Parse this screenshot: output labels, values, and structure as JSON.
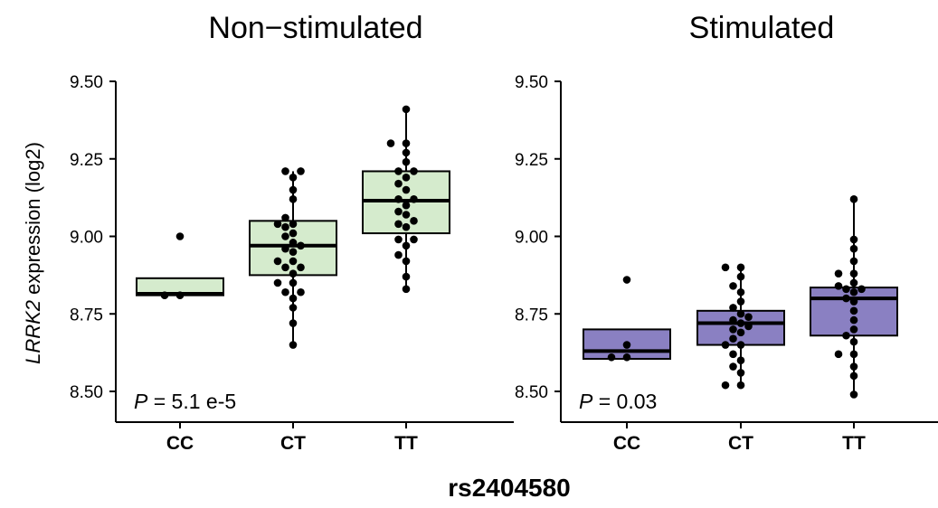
{
  "ylabel_italic": "LRRK2",
  "ylabel_rest": " expression (log2)",
  "xlabel": "rs2404580",
  "chart_data": [
    {
      "type": "box",
      "title": "Non−stimulated",
      "categories": [
        "CC",
        "CT",
        "TT"
      ],
      "ylim": [
        8.45,
        9.55
      ],
      "yticks": [
        "8.50",
        "8.75",
        "9.00",
        "9.25",
        "9.50"
      ],
      "fill": "#d5ebcd",
      "p_label": "P",
      "p_value": " = 5.1 e-5",
      "boxes": [
        {
          "q1": 8.81,
          "median": 8.815,
          "q3": 8.865,
          "whisker_low": 8.81,
          "whisker_high": 8.865
        },
        {
          "q1": 8.875,
          "median": 8.97,
          "q3": 9.05,
          "whisker_low": 8.65,
          "whisker_high": 9.21
        },
        {
          "q1": 9.01,
          "median": 9.115,
          "q3": 9.21,
          "whisker_low": 8.83,
          "whisker_high": 9.41
        }
      ],
      "points": [
        [
          8.81,
          8.81,
          9.0
        ],
        [
          8.65,
          8.72,
          8.77,
          8.8,
          8.82,
          8.82,
          8.85,
          8.85,
          8.88,
          8.9,
          8.9,
          8.92,
          8.92,
          8.95,
          8.96,
          8.97,
          8.98,
          9.0,
          9.01,
          9.03,
          9.04,
          9.04,
          9.06,
          9.12,
          9.15,
          9.19,
          9.21,
          9.21
        ],
        [
          8.83,
          8.87,
          8.92,
          8.94,
          8.97,
          8.99,
          8.99,
          9.03,
          9.04,
          9.05,
          9.07,
          9.08,
          9.1,
          9.12,
          9.12,
          9.15,
          9.17,
          9.19,
          9.21,
          9.21,
          9.24,
          9.27,
          9.3,
          9.3,
          9.41
        ]
      ]
    },
    {
      "type": "box",
      "title": "Stimulated",
      "categories": [
        "CC",
        "CT",
        "TT"
      ],
      "ylim": [
        8.45,
        9.55
      ],
      "yticks": [
        "8.50",
        "8.75",
        "9.00",
        "9.25",
        "9.50"
      ],
      "fill": "#8a80c2",
      "p_label": "P",
      "p_value": " = 0.03",
      "boxes": [
        {
          "q1": 8.605,
          "median": 8.63,
          "q3": 8.7,
          "whisker_low": 8.605,
          "whisker_high": 8.7
        },
        {
          "q1": 8.65,
          "median": 8.72,
          "q3": 8.76,
          "whisker_low": 8.52,
          "whisker_high": 8.9
        },
        {
          "q1": 8.68,
          "median": 8.8,
          "q3": 8.835,
          "whisker_low": 8.49,
          "whisker_high": 9.12
        }
      ],
      "points": [
        [
          8.61,
          8.61,
          8.65,
          8.86
        ],
        [
          8.52,
          8.52,
          8.56,
          8.58,
          8.6,
          8.62,
          8.65,
          8.65,
          8.67,
          8.69,
          8.7,
          8.71,
          8.72,
          8.73,
          8.74,
          8.75,
          8.77,
          8.79,
          8.82,
          8.84,
          8.87,
          8.9,
          8.9
        ],
        [
          8.49,
          8.55,
          8.58,
          8.62,
          8.62,
          8.66,
          8.68,
          8.7,
          8.73,
          8.76,
          8.79,
          8.8,
          8.82,
          8.83,
          8.83,
          8.84,
          8.85,
          8.88,
          8.88,
          8.92,
          8.96,
          8.99,
          9.12
        ]
      ]
    }
  ]
}
